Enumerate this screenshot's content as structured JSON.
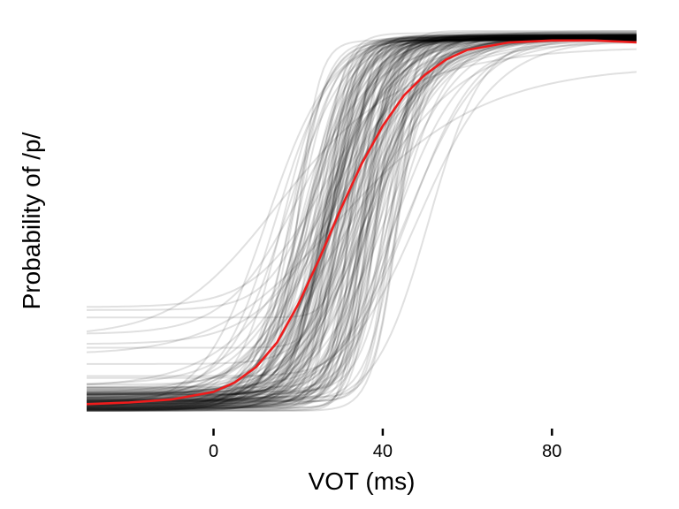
{
  "chart_data": {
    "type": "line",
    "title": "",
    "xlabel": "VOT (ms)",
    "ylabel": "Probability of /p/",
    "xlim": [
      -30,
      100
    ],
    "ylim": [
      0,
      1
    ],
    "xticks": [
      0,
      40,
      80
    ],
    "xtick_labels": [
      "0",
      "40",
      "80"
    ],
    "yticks": [],
    "grid": false,
    "legend": "none",
    "colors": {
      "individual": "#000000",
      "mean": "#ee1c1c"
    },
    "individual_opacity": 0.12,
    "individual_curves_note_count": 150,
    "mean_curve": {
      "x": [
        -30,
        -20,
        -10,
        0,
        5,
        10,
        15,
        20,
        25,
        30,
        35,
        40,
        45,
        50,
        55,
        60,
        70,
        80,
        90,
        100
      ],
      "y": [
        0.018,
        0.022,
        0.03,
        0.05,
        0.075,
        0.115,
        0.18,
        0.28,
        0.4,
        0.53,
        0.65,
        0.75,
        0.83,
        0.885,
        0.925,
        0.95,
        0.97,
        0.975,
        0.975,
        0.97
      ]
    }
  }
}
